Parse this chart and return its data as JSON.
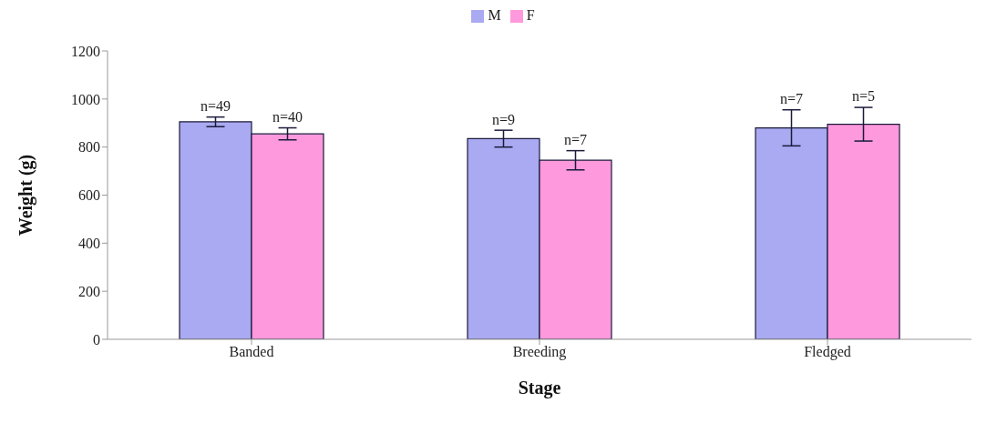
{
  "chart_data": {
    "type": "bar",
    "xlabel": "Stage",
    "ylabel": "Weight (g)",
    "categories": [
      "Banded",
      "Breeding",
      "Fledged"
    ],
    "series": [
      {
        "name": "M",
        "color": "#aaaaf2",
        "values": [
          905,
          835,
          880
        ],
        "errors": [
          20,
          35,
          75
        ]
      },
      {
        "name": "F",
        "color": "#ff99dd",
        "values": [
          855,
          745,
          895
        ],
        "errors": [
          25,
          40,
          70
        ]
      }
    ],
    "annotations": [
      {
        "text": "n=49",
        "x": "Banded",
        "y": 905
      },
      {
        "text": "n=40",
        "x": "Banded",
        "y": 855
      },
      {
        "text": "n=9",
        "x": "Breeding",
        "y": 835
      },
      {
        "text": "n=7",
        "x": "Breeding",
        "y": 745
      },
      {
        "text": "n=7",
        "x": "Fledged",
        "y": 880
      },
      {
        "text": "n=5",
        "x": "Fledged",
        "y": 895
      }
    ],
    "ylim": [
      0,
      1200
    ],
    "yticks": [
      0,
      200,
      400,
      600,
      800,
      1000,
      1200
    ],
    "grid": false,
    "legend": "top"
  }
}
